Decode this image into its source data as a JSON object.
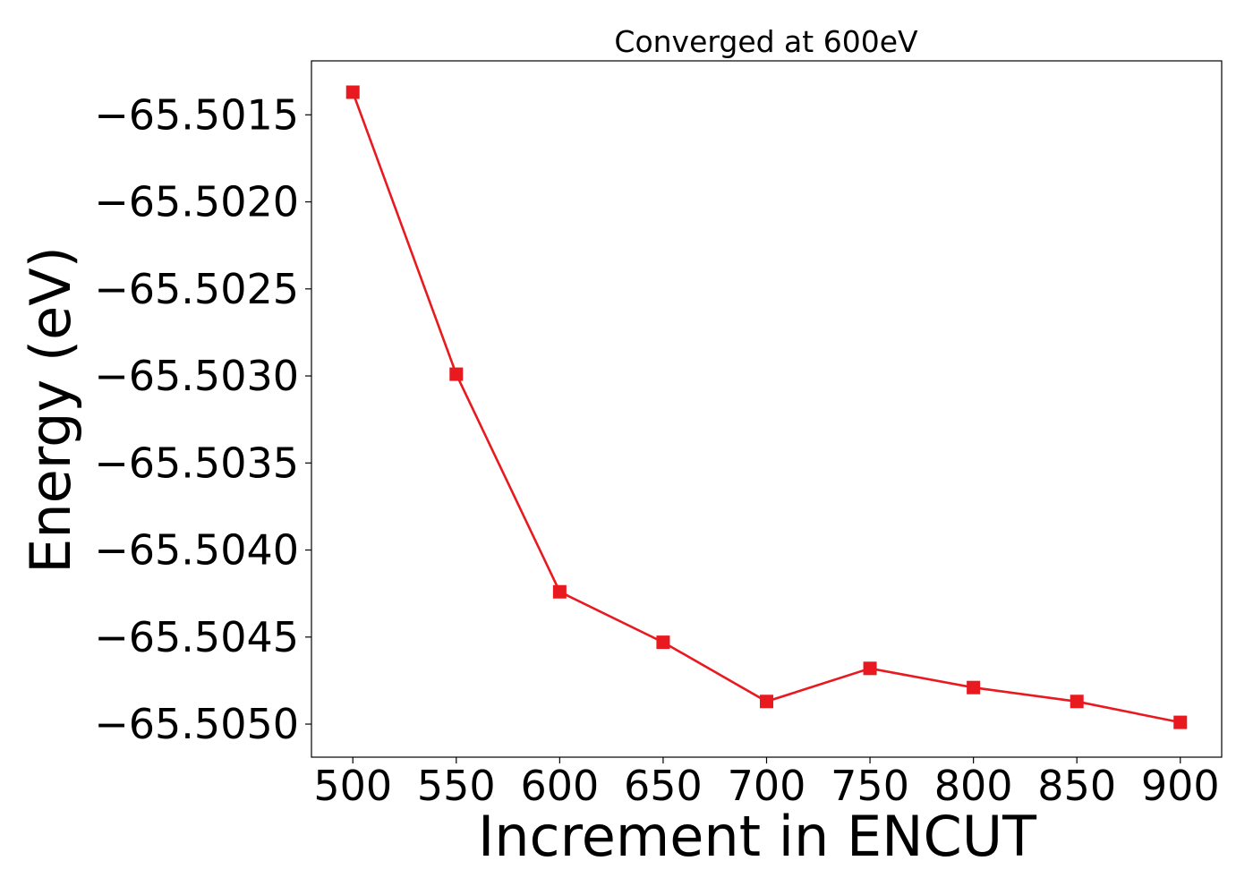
{
  "chart_data": {
    "type": "line",
    "title": "Converged at 600eV",
    "xlabel": "Increment in ENCUT",
    "ylabel": "Energy (eV)",
    "x": [
      500,
      550,
      600,
      650,
      700,
      750,
      800,
      850,
      900
    ],
    "series": [
      {
        "values": [
          -65.50137,
          -65.50299,
          -65.50424,
          -65.50453,
          -65.50487,
          -65.50468,
          -65.50479,
          -65.50487,
          -65.50499
        ],
        "color": "#e8191f",
        "marker": "square"
      }
    ],
    "xticks": [
      500,
      550,
      600,
      650,
      700,
      750,
      800,
      850,
      900
    ],
    "xtick_labels": [
      "500",
      "550",
      "600",
      "650",
      "700",
      "750",
      "800",
      "850",
      "900"
    ],
    "yticks": [
      -65.5015,
      -65.502,
      -65.5025,
      -65.503,
      -65.5035,
      -65.504,
      -65.5045,
      -65.505
    ],
    "ytick_labels": [
      "−65.5015",
      "−65.5020",
      "−65.5025",
      "−65.5030",
      "−65.5035",
      "−65.5040",
      "−65.5045",
      "−65.5050"
    ],
    "xlim": [
      480,
      920
    ],
    "ylim": [
      -65.50519,
      -65.50119
    ],
    "grid": false,
    "legend": "none"
  }
}
